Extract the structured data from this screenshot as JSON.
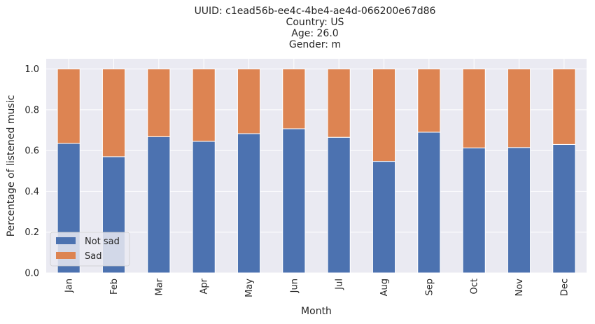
{
  "chart_data": {
    "type": "bar",
    "stacked": true,
    "title_lines": [
      "UUID: c1ead56b-ee4c-4be4-ae4d-066200e67d86",
      "Country: US",
      "Age: 26.0",
      "Gender: m"
    ],
    "xlabel": "Month",
    "ylabel": "Percentage of listened music",
    "ylim": [
      0,
      1.05
    ],
    "yticks": [
      0.0,
      0.2,
      0.4,
      0.6,
      0.8,
      1.0
    ],
    "ytick_labels": [
      "0.0",
      "0.2",
      "0.4",
      "0.6",
      "0.8",
      "1.0"
    ],
    "categories": [
      "Jan",
      "Feb",
      "Mar",
      "Apr",
      "May",
      "Jun",
      "Jul",
      "Aug",
      "Sep",
      "Oct",
      "Nov",
      "Dec"
    ],
    "series": [
      {
        "name": "Not sad",
        "color": "#4c72b0",
        "values": [
          0.635,
          0.57,
          0.668,
          0.645,
          0.683,
          0.707,
          0.665,
          0.547,
          0.69,
          0.613,
          0.615,
          0.63
        ]
      },
      {
        "name": "Sad",
        "color": "#dd8452",
        "values": [
          0.365,
          0.43,
          0.332,
          0.355,
          0.317,
          0.293,
          0.335,
          0.453,
          0.31,
          0.387,
          0.385,
          0.37
        ]
      }
    ],
    "grid": true,
    "legend_position": "lower-left",
    "background": "#eaeaf2"
  }
}
